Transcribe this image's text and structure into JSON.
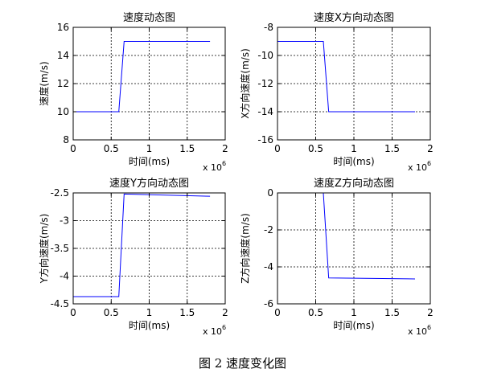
{
  "figure": {
    "caption": "图 2  速度变化图"
  },
  "chart_data": [
    {
      "type": "line",
      "title": "速度动态图",
      "xlabel": "时间(ms)",
      "ylabel": "速度(m/s)",
      "x_scale_label": "x 10",
      "x_scale_exp": "6",
      "xlim": [
        0,
        2
      ],
      "ylim": [
        8,
        16
      ],
      "xticks": [
        0,
        0.5,
        1,
        1.5,
        2
      ],
      "xtick_labels": [
        "0",
        "0.5",
        "1",
        "1.5",
        "2"
      ],
      "yticks": [
        8,
        10,
        12,
        14,
        16
      ],
      "ytick_labels": [
        "8",
        "10",
        "12",
        "14",
        "16"
      ],
      "grid": true,
      "color": "#0000ff",
      "series": [
        {
          "x": [
            0,
            0.6,
            0.67,
            1.8
          ],
          "y": [
            10,
            10,
            15,
            15
          ]
        }
      ]
    },
    {
      "type": "line",
      "title": "速度X方向动态图",
      "xlabel": "时间(ms)",
      "ylabel": "X方向速度(m/s)",
      "x_scale_label": "x 10",
      "x_scale_exp": "6",
      "xlim": [
        0,
        2
      ],
      "ylim": [
        -16,
        -8
      ],
      "xticks": [
        0,
        0.5,
        1,
        1.5,
        2
      ],
      "xtick_labels": [
        "0",
        "0.5",
        "1",
        "1.5",
        "2"
      ],
      "yticks": [
        -16,
        -14,
        -12,
        -10,
        -8
      ],
      "ytick_labels": [
        "-16",
        "-14",
        "-12",
        "-10",
        "-8"
      ],
      "grid": true,
      "color": "#0000ff",
      "series": [
        {
          "x": [
            0,
            0.6,
            0.67,
            1.8
          ],
          "y": [
            -9,
            -9,
            -14,
            -14
          ]
        }
      ]
    },
    {
      "type": "line",
      "title": "速度Y方向动态图",
      "xlabel": "时间(ms)",
      "ylabel": "Y方向速度(m/s)",
      "x_scale_label": "x 10",
      "x_scale_exp": "6",
      "xlim": [
        0,
        2
      ],
      "ylim": [
        -4.5,
        -2.5
      ],
      "xticks": [
        0,
        0.5,
        1,
        1.5,
        2
      ],
      "xtick_labels": [
        "0",
        "0.5",
        "1",
        "1.5",
        "2"
      ],
      "yticks": [
        -4.5,
        -4,
        -3.5,
        -3,
        -2.5
      ],
      "ytick_labels": [
        "-4.5",
        "-4",
        "-3.5",
        "-3",
        "-2.5"
      ],
      "grid": true,
      "color": "#0000ff",
      "series": [
        {
          "x": [
            0,
            0.6,
            0.67,
            1.8
          ],
          "y": [
            -4.37,
            -4.37,
            -2.52,
            -2.56
          ]
        }
      ]
    },
    {
      "type": "line",
      "title": "速度Z方向动态图",
      "xlabel": "时间(ms)",
      "ylabel": "Z方向速度(m/s)",
      "x_scale_label": "x 10",
      "x_scale_exp": "6",
      "xlim": [
        0,
        2
      ],
      "ylim": [
        -6,
        0
      ],
      "xticks": [
        0,
        0.5,
        1,
        1.5,
        2
      ],
      "xtick_labels": [
        "0",
        "0.5",
        "1",
        "1.5",
        "2"
      ],
      "yticks": [
        -6,
        -4,
        -2,
        0
      ],
      "ytick_labels": [
        "-6",
        "-4",
        "-2",
        "0"
      ],
      "grid": true,
      "color": "#0000ff",
      "series": [
        {
          "x": [
            0,
            0.6,
            0.67,
            1.8
          ],
          "y": [
            0,
            0,
            -4.6,
            -4.65
          ]
        }
      ]
    }
  ]
}
